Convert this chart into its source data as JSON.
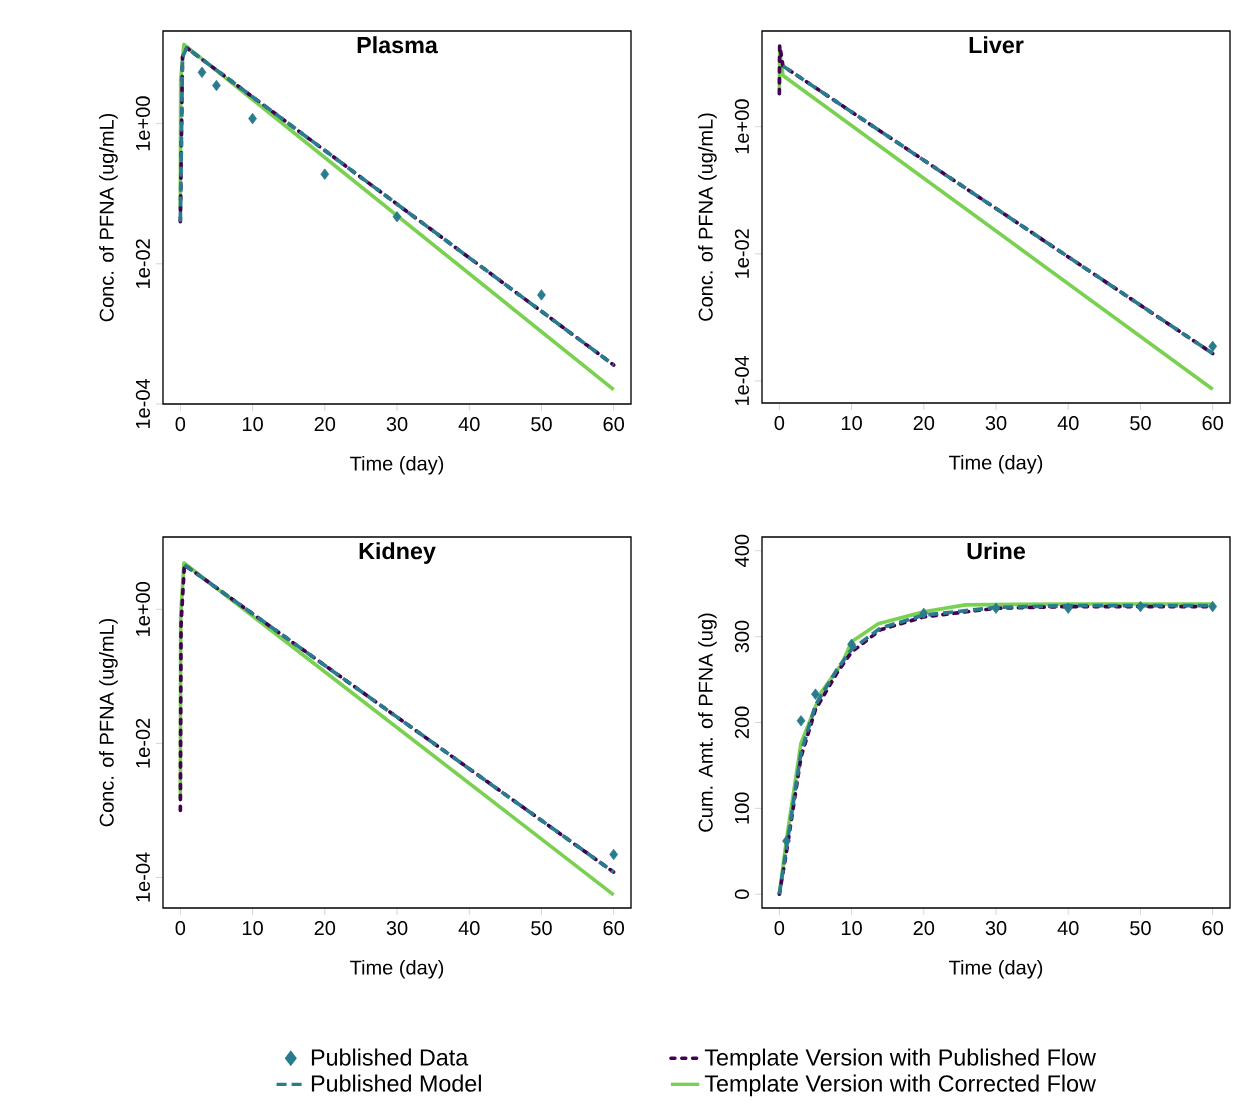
{
  "chart_data": [
    {
      "type": "line",
      "title": "Plasma",
      "xlabel": "Time (day)",
      "ylabel": "Conc. of PFNA (ug/mL)",
      "log": true,
      "xlim": [
        -2.4,
        62.4
      ],
      "xticks": [
        0,
        10,
        20,
        30,
        40,
        50,
        60
      ],
      "ylim": [
        0.0001,
        21
      ],
      "yticks": [
        {
          "value": 1,
          "label": "1e+00"
        },
        {
          "value": 0.01,
          "label": "1e-02"
        },
        {
          "value": 0.0001,
          "label": "1e-04"
        }
      ],
      "series": [
        {
          "type": "scatter",
          "marker": "diamond",
          "color": "#2a7b8e",
          "x": [
            3,
            5,
            10,
            20,
            30,
            50
          ],
          "values": [
            5.4,
            3.5,
            1.18,
            0.19,
            0.047,
            0.0036
          ]
        },
        {
          "line_style": "dotted",
          "color": "#440154",
          "x": [
            0,
            0.3,
            0.9,
            60
          ],
          "values": [
            0.04,
            9,
            12,
            0.00036
          ]
        },
        {
          "line_style": "dashed",
          "color": "#2a7b8e",
          "x": [
            0,
            0.3,
            0.9,
            60
          ],
          "values": [
            0.04,
            9,
            12,
            0.00036
          ]
        },
        {
          "line_style": "solid",
          "color": "#7ad151",
          "x": [
            0,
            0.05,
            0.5,
            60
          ],
          "values": [
            0.06,
            4.2,
            13.5,
            0.00016
          ]
        }
      ]
    },
    {
      "type": "line",
      "title": "Liver",
      "xlabel": "Time (day)",
      "ylabel": "Conc. of PFNA (ug/mL)",
      "log": true,
      "xlim": [
        -2.4,
        62.4
      ],
      "xticks": [
        0,
        10,
        20,
        30,
        40,
        50,
        60
      ],
      "ylim": [
        4.5e-05,
        32
      ],
      "yticks": [
        {
          "value": 1,
          "label": "1e+00"
        },
        {
          "value": 0.01,
          "label": "1e-02"
        },
        {
          "value": 0.0001,
          "label": "1e-04"
        }
      ],
      "series": [
        {
          "type": "scatter",
          "marker": "diamond",
          "color": "#2a7b8e",
          "x": [
            60
          ],
          "values": [
            0.00035
          ]
        },
        {
          "line_style": "dotted",
          "color": "#440154",
          "x": [
            0,
            0.05,
            0.5,
            60
          ],
          "values": [
            3.3,
            19,
            9,
            0.00027
          ]
        },
        {
          "line_style": "dashed",
          "color": "#2a7b8e",
          "x": [
            0.5,
            60
          ],
          "values": [
            9,
            0.00027
          ]
        },
        {
          "line_style": "solid",
          "color": "#7ad151",
          "x": [
            0,
            0.05,
            0.5,
            60
          ],
          "values": [
            3.9,
            15,
            6.4,
            7.4e-05
          ]
        }
      ]
    },
    {
      "type": "line",
      "title": "Kidney",
      "xlabel": "Time (day)",
      "ylabel": "Conc. of PFNA (ug/mL)",
      "log": true,
      "xlim": [
        -2.4,
        62.4
      ],
      "xticks": [
        0,
        10,
        20,
        30,
        40,
        50,
        60
      ],
      "ylim": [
        3.5e-05,
        12
      ],
      "yticks": [
        {
          "value": 1,
          "label": "1e+00"
        },
        {
          "value": 0.01,
          "label": "1e-02"
        },
        {
          "value": 0.0001,
          "label": "1e-04"
        }
      ],
      "series": [
        {
          "type": "scatter",
          "marker": "diamond",
          "color": "#2a7b8e",
          "x": [
            60
          ],
          "values": [
            0.00022
          ]
        },
        {
          "line_style": "dotted",
          "color": "#440154",
          "x": [
            0,
            0.1,
            0.56,
            60
          ],
          "values": [
            0.001,
            0.6,
            4.6,
            0.00012
          ]
        },
        {
          "line_style": "dashed",
          "color": "#2a7b8e",
          "x": [
            0.56,
            60
          ],
          "values": [
            4.6,
            0.00012
          ]
        },
        {
          "line_style": "solid",
          "color": "#7ad151",
          "x": [
            0,
            0.05,
            0.5,
            60
          ],
          "values": [
            0.0015,
            0.8,
            4.9,
            5.5e-05
          ]
        }
      ]
    },
    {
      "type": "line",
      "title": "Urine",
      "xlabel": "Time (day)",
      "ylabel": "Cum. Amt. of PFNA (ug)",
      "legend": "bottom",
      "xlim": [
        -2.4,
        62.4
      ],
      "xticks": [
        0,
        10,
        20,
        30,
        40,
        50,
        60
      ],
      "ylim": [
        -16,
        416
      ],
      "yticks": [
        0,
        100,
        200,
        300,
        400
      ],
      "series": [
        {
          "type": "scatter",
          "name": "Published Data",
          "marker": "diamond",
          "color": "#2a7b8e",
          "x": [
            1,
            3,
            5,
            10,
            20,
            30,
            40,
            50,
            60
          ],
          "values": [
            62,
            202,
            233,
            291,
            327,
            333,
            333,
            335,
            335
          ]
        },
        {
          "name": "Template Version with Published Flow",
          "line_style": "dotted",
          "color": "#440154",
          "x": [
            0,
            1,
            3,
            5,
            8,
            10,
            14,
            20,
            30,
            40,
            60
          ],
          "values": [
            0,
            50,
            160,
            215,
            258,
            282,
            308,
            323,
            333,
            335,
            335
          ]
        },
        {
          "name": "Published Model",
          "line_style": "dashed",
          "color": "#2a7b8e",
          "x": [
            0,
            1,
            3,
            5,
            8,
            10,
            14,
            20,
            30,
            40,
            60
          ],
          "values": [
            0,
            55,
            165,
            220,
            262,
            285,
            310,
            325,
            334,
            336,
            336
          ]
        },
        {
          "name": "Template Version with Corrected Flow",
          "line_style": "solid",
          "color": "#7ad151",
          "x": [
            0,
            1,
            3,
            5.8,
            8.7,
            10,
            13.7,
            20,
            25.8,
            40,
            60
          ],
          "values": [
            0,
            64,
            176,
            235,
            269,
            294,
            315,
            329,
            337,
            338,
            338
          ]
        }
      ]
    }
  ]
}
